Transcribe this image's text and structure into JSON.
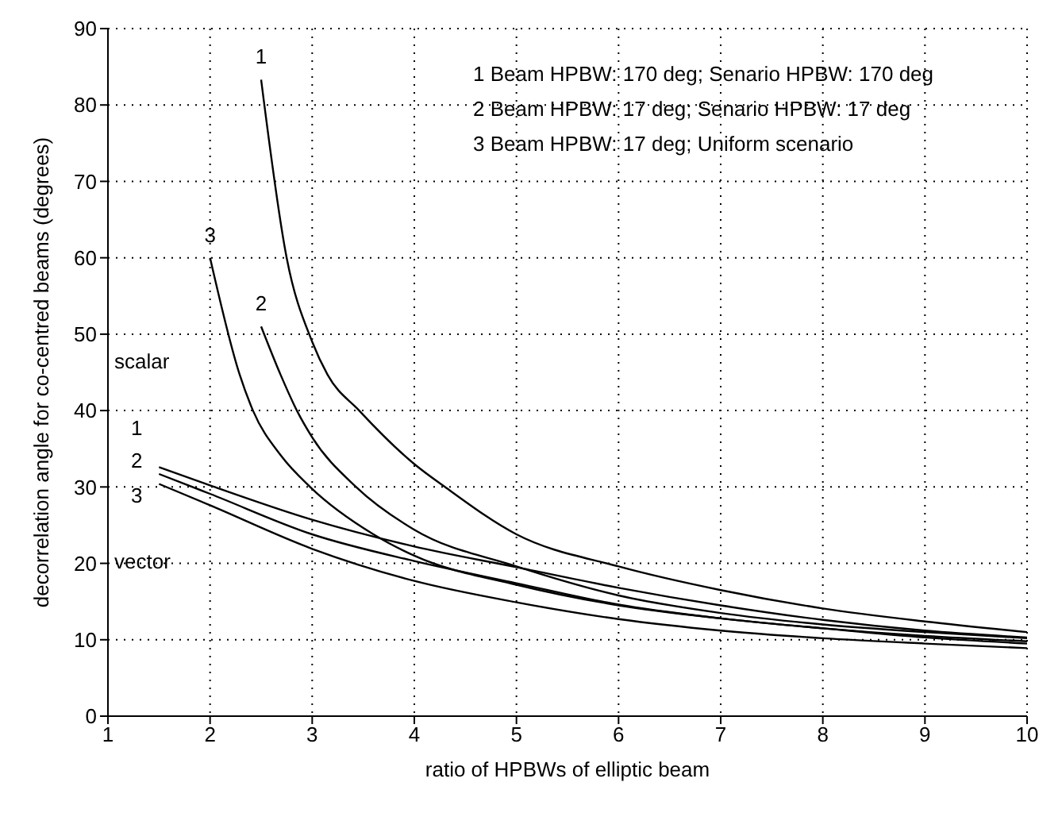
{
  "chart_data": {
    "type": "line",
    "xlabel": "ratio of HPBWs of elliptic beam",
    "ylabel": "decorrelation angle for co-centred beams (degrees)",
    "xlim": [
      1,
      10
    ],
    "xticks": [
      1,
      2,
      3,
      4,
      5,
      6,
      7,
      8,
      9,
      10
    ],
    "ylim": [
      0,
      90
    ],
    "yticks": [
      0,
      10,
      20,
      30,
      40,
      50,
      60,
      70,
      80,
      90
    ],
    "grid": true,
    "legend": false,
    "marker": "none",
    "line_style": "solid",
    "annotations": [
      "1 Beam HPBW: 170 deg; Senario HPBW: 170 deg",
      "2 Beam HPBW: 17 deg; Senario HPBW: 17 deg",
      "3 Beam HPBW: 17 deg; Uniform scenario",
      "scalar",
      "vector"
    ],
    "series": [
      {
        "name": "1",
        "color": "#000000",
        "x": [
          2.5,
          2.75,
          3,
          3.15,
          3.46,
          4,
          4.3,
          5,
          6,
          7,
          8,
          9,
          10
        ],
        "values": [
          83.3,
          60,
          49,
          44.7,
          40,
          33,
          30,
          23.8,
          19.6,
          16.5,
          14.1,
          12.4,
          11.0
        ]
      },
      {
        "name": "2",
        "color": "#000000",
        "x": [
          2.5,
          2.69,
          2.85,
          3,
          3.43,
          4,
          5,
          6,
          7,
          8,
          9,
          10
        ],
        "values": [
          51,
          44.7,
          40,
          36.5,
          30,
          24.4,
          19.6,
          15.8,
          13.5,
          12,
          11,
          10.2
        ]
      },
      {
        "name": "3",
        "color": "#000000",
        "x": [
          2,
          2.29,
          2.42,
          2.7,
          2.98,
          3.6,
          4,
          5,
          6,
          7,
          8,
          9,
          10
        ],
        "values": [
          60,
          44.7,
          40,
          34,
          30,
          23.8,
          21,
          17.2,
          14.5,
          12.8,
          11.5,
          10.5,
          9.8
        ]
      },
      {
        "name": "1",
        "color": "#000000",
        "x": [
          1.5,
          2,
          3,
          4,
          5,
          6,
          7,
          8,
          9,
          10
        ],
        "values": [
          32.6,
          30.2,
          25.7,
          22.2,
          19.5,
          16.8,
          14.5,
          12.6,
          11.2,
          10.3
        ]
      },
      {
        "name": "2",
        "color": "#000000",
        "x": [
          1.5,
          2,
          3,
          4,
          5,
          6,
          7,
          8,
          9,
          10
        ],
        "values": [
          31.7,
          29.1,
          23.8,
          20.3,
          17.4,
          14.6,
          12.8,
          11.5,
          10.3,
          9.5
        ]
      },
      {
        "name": "3",
        "color": "#000000",
        "x": [
          1.5,
          2,
          3,
          4,
          5,
          6,
          7,
          8,
          9,
          10
        ],
        "values": [
          30.4,
          27.6,
          21.9,
          17.7,
          14.9,
          12.7,
          11.2,
          10.2,
          9.5,
          8.9
        ]
      }
    ]
  }
}
